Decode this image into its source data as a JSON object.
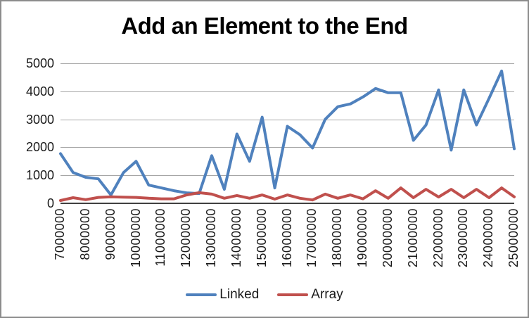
{
  "chart_data": {
    "type": "line",
    "title": "Add an Element to the End",
    "xlabel": "",
    "ylabel": "",
    "ylim": [
      0,
      5000
    ],
    "y_ticks": [
      0,
      1000,
      2000,
      3000,
      4000,
      5000
    ],
    "grid": "horizontal",
    "legend_position": "bottom",
    "x": [
      7000000,
      7500000,
      8000000,
      8500000,
      9000000,
      9500000,
      10000000,
      10500000,
      11000000,
      11500000,
      12000000,
      12500000,
      13000000,
      13500000,
      14000000,
      14500000,
      15000000,
      15500000,
      16000000,
      16500000,
      17000000,
      17500000,
      18000000,
      18500000,
      19000000,
      19500000,
      20000000,
      20500000,
      21000000,
      21500000,
      22000000,
      22500000,
      23000000,
      23500000,
      24000000,
      24500000,
      25000000
    ],
    "x_tick_labels": [
      "7000000",
      "8000000",
      "9000000",
      "10000000",
      "11000000",
      "12000000",
      "13000000",
      "14000000",
      "15000000",
      "16000000",
      "17000000",
      "18000000",
      "19000000",
      "20000000",
      "21000000",
      "22000000",
      "23000000",
      "24000000",
      "25000000"
    ],
    "series": [
      {
        "name": "Linked",
        "color": "#4F81BD",
        "values": [
          1775,
          1100,
          930,
          875,
          300,
          1100,
          1500,
          650,
          550,
          450,
          375,
          350,
          1700,
          500,
          2475,
          1500,
          3075,
          550,
          2750,
          2450,
          1975,
          3000,
          3450,
          3550,
          3800,
          4100,
          3950,
          3950,
          2250,
          2800,
          4050,
          1900,
          4050,
          2800,
          3750,
          4725,
          1950
        ]
      },
      {
        "name": "Array",
        "color": "#C0504D",
        "values": [
          100,
          200,
          130,
          210,
          230,
          220,
          210,
          180,
          160,
          160,
          300,
          380,
          330,
          180,
          280,
          180,
          300,
          150,
          300,
          180,
          120,
          330,
          180,
          300,
          160,
          450,
          180,
          550,
          200,
          500,
          225,
          500,
          200,
          500,
          200,
          550,
          230
        ]
      }
    ]
  },
  "layout_text": {
    "title": "Add an Element to the End"
  }
}
